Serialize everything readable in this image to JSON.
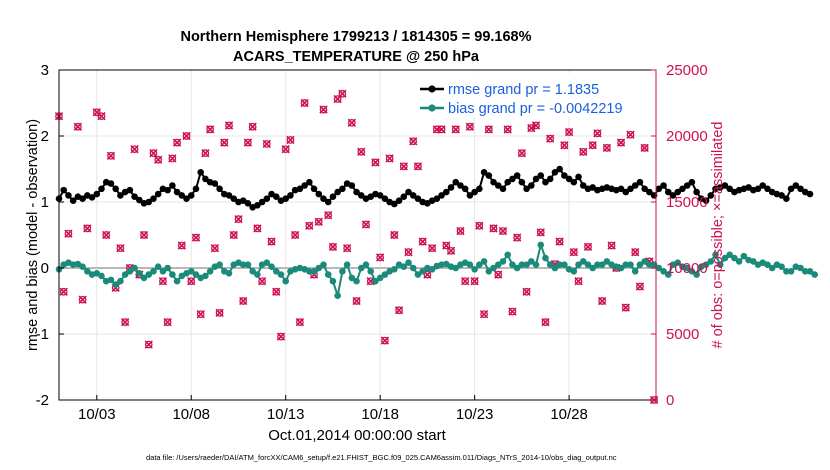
{
  "chart_data": {
    "type": "line",
    "title": "Northern Hemisphere 1799213 / 1814305 = 99.168%",
    "subtitle": "ACARS_TEMPERATURE @ 250 hPa",
    "xlabel": "Oct.01,2014 00:00:00 start",
    "ylabel": "rmse and bias (model - observation)",
    "y2label": "# of obs: o=possible; ×=assimilated",
    "footnote": "data file: /Users/raeder/DAI/ATM_forcXX/CAM6_setup/f.e21.FHIST_BGC.f09_025.CAM6assim.011/Diags_NTrS_2014-10/obs_diag_output.nc",
    "xlim": [
      1,
      32.6
    ],
    "ylim": [
      -2,
      3
    ],
    "y2lim": [
      0,
      25000
    ],
    "xticks": [
      3,
      8,
      13,
      18,
      23,
      28
    ],
    "xtick_labels": [
      "10/03",
      "10/08",
      "10/13",
      "10/18",
      "10/23",
      "10/28"
    ],
    "yticks": [
      -2,
      -1,
      0,
      1,
      2,
      3
    ],
    "ytick_labels": [
      "-2",
      "-1",
      "0",
      "1",
      "2",
      "3"
    ],
    "y2ticks": [
      0,
      5000,
      10000,
      15000,
      20000,
      25000
    ],
    "y2tick_labels": [
      "0",
      "5000",
      "10000",
      "15000",
      "20000",
      "25000"
    ],
    "zero_line": 0,
    "legend_position": "top-right",
    "series": [
      {
        "name": "rmse grand pr = 1.1835",
        "axis": "left",
        "color": "#000000",
        "marker": "circle",
        "x_start": 1.0,
        "x_step": 0.25,
        "values": [
          1.05,
          1.18,
          1.1,
          1.02,
          1.08,
          1.05,
          1.1,
          1.07,
          1.12,
          1.2,
          1.3,
          1.28,
          1.2,
          1.1,
          1.15,
          1.18,
          1.08,
          1.03,
          0.98,
          1.0,
          1.05,
          1.12,
          1.2,
          1.18,
          1.25,
          1.15,
          1.1,
          1.05,
          1.1,
          1.2,
          1.45,
          1.35,
          1.3,
          1.28,
          1.2,
          1.12,
          1.1,
          1.05,
          1.0,
          1.02,
          0.98,
          0.92,
          0.95,
          1.0,
          1.05,
          1.12,
          1.08,
          1.02,
          1.05,
          1.1,
          1.18,
          1.2,
          1.25,
          1.3,
          1.2,
          1.12,
          1.05,
          1.0,
          1.08,
          1.15,
          1.2,
          1.28,
          1.25,
          1.15,
          1.1,
          1.05,
          1.08,
          1.12,
          1.1,
          1.05,
          1.0,
          0.97,
          1.02,
          1.08,
          1.15,
          1.1,
          1.05,
          1.0,
          0.98,
          1.02,
          1.05,
          1.1,
          1.15,
          1.22,
          1.3,
          1.25,
          1.2,
          1.1,
          1.15,
          1.2,
          1.45,
          1.4,
          1.3,
          1.25,
          1.2,
          1.3,
          1.35,
          1.4,
          1.3,
          1.2,
          1.25,
          1.35,
          1.4,
          1.3,
          1.35,
          1.45,
          1.5,
          1.4,
          1.35,
          1.3,
          1.38,
          1.25,
          1.2,
          1.22,
          1.18,
          1.2,
          1.22,
          1.2,
          1.18,
          1.2,
          1.15,
          1.2,
          1.25,
          1.3,
          1.2,
          1.15,
          1.1,
          1.2,
          1.25,
          1.15,
          1.1,
          1.15,
          1.2,
          1.25,
          1.3,
          1.15,
          1.05,
          1.02,
          1.1,
          1.2,
          1.22,
          1.25,
          1.2,
          1.15,
          1.18,
          1.2,
          1.22,
          1.18,
          1.2,
          1.25,
          1.2,
          1.15,
          1.12,
          1.1,
          1.05,
          1.2,
          1.25,
          1.2,
          1.15,
          1.12
        ]
      },
      {
        "name": "bias grand pr = -0.0042219",
        "axis": "left",
        "color": "#1a8a7a",
        "marker": "circle",
        "x_start": 1.0,
        "x_step": 0.25,
        "values": [
          -0.02,
          0.05,
          0.08,
          0.05,
          0.06,
          0.02,
          -0.05,
          -0.1,
          -0.08,
          -0.12,
          -0.2,
          -0.18,
          -0.25,
          -0.2,
          -0.1,
          -0.05,
          0.0,
          -0.08,
          -0.15,
          -0.1,
          -0.05,
          0.02,
          -0.05,
          0.0,
          -0.1,
          -0.2,
          -0.12,
          -0.08,
          -0.05,
          -0.1,
          -0.15,
          -0.12,
          -0.05,
          0.02,
          0.05,
          -0.05,
          -0.08,
          0.05,
          0.08,
          0.05,
          0.05,
          -0.05,
          -0.1,
          0.05,
          0.08,
          0.02,
          -0.05,
          -0.1,
          -0.2,
          -0.05,
          -0.02,
          0.0,
          -0.02,
          -0.05,
          -0.05,
          0.0,
          0.05,
          -0.1,
          -0.2,
          -0.42,
          -0.05,
          0.05,
          -0.15,
          -0.2,
          0.0,
          0.05,
          -0.05,
          -0.2,
          -0.15,
          -0.1,
          -0.05,
          -0.02,
          0.05,
          0.02,
          0.08,
          0.0,
          -0.1,
          -0.05,
          0.0,
          -0.02,
          0.03,
          0.05,
          0.06,
          0.02,
          0.0,
          0.05,
          0.08,
          0.05,
          -0.02,
          0.05,
          0.1,
          -0.05,
          0.0,
          0.05,
          0.1,
          0.2,
          0.05,
          0.0,
          0.05,
          0.05,
          0.1,
          0.05,
          0.35,
          0.15,
          0.05,
          0.0,
          0.05,
          0.05,
          -0.02,
          -0.05,
          0.05,
          0.1,
          0.05,
          0.0,
          0.05,
          0.05,
          0.1,
          0.05,
          0.02,
          0.0,
          0.05,
          0.05,
          -0.05,
          0.05,
          0.1,
          0.05,
          0.05,
          0.0,
          -0.05,
          -0.1,
          0.05,
          0.08,
          0.02,
          0.0,
          -0.05,
          -0.1,
          0.02,
          0.05,
          0.1,
          0.2,
          0.05,
          0.15,
          0.2,
          0.15,
          0.1,
          0.18,
          0.12,
          0.1,
          0.05,
          0.08,
          0.05,
          0.0,
          0.05,
          0.02,
          -0.05,
          -0.05,
          0.02,
          0.0,
          -0.05,
          -0.05,
          -0.1
        ]
      },
      {
        "name": "possible",
        "axis": "right",
        "color": "#cc1155",
        "marker": "o",
        "points": [
          [
            1.0,
            21500
          ],
          [
            1.25,
            8200
          ],
          [
            1.5,
            12600
          ],
          [
            2.0,
            20700
          ],
          [
            2.25,
            7600
          ],
          [
            2.5,
            13000
          ],
          [
            3.0,
            21800
          ],
          [
            3.25,
            21500
          ],
          [
            3.5,
            12500
          ],
          [
            3.75,
            18500
          ],
          [
            4.0,
            8500
          ],
          [
            4.25,
            11500
          ],
          [
            4.5,
            5900
          ],
          [
            4.75,
            10000
          ],
          [
            5.0,
            19000
          ],
          [
            5.25,
            9500
          ],
          [
            5.5,
            12500
          ],
          [
            5.75,
            4200
          ],
          [
            6.0,
            18700
          ],
          [
            6.25,
            18200
          ],
          [
            6.5,
            9000
          ],
          [
            6.75,
            5900
          ],
          [
            7.0,
            18300
          ],
          [
            7.25,
            19500
          ],
          [
            7.5,
            11700
          ],
          [
            7.75,
            20000
          ],
          [
            8.0,
            9000
          ],
          [
            8.25,
            12300
          ],
          [
            8.5,
            6500
          ],
          [
            8.75,
            18700
          ],
          [
            9.0,
            20500
          ],
          [
            9.25,
            11500
          ],
          [
            9.5,
            6600
          ],
          [
            9.75,
            19500
          ],
          [
            10.0,
            20800
          ],
          [
            10.25,
            12500
          ],
          [
            10.5,
            13700
          ],
          [
            10.75,
            7500
          ],
          [
            11.0,
            19500
          ],
          [
            11.25,
            20700
          ],
          [
            11.5,
            13000
          ],
          [
            11.75,
            9000
          ],
          [
            12.0,
            19400
          ],
          [
            12.25,
            12000
          ],
          [
            12.5,
            8200
          ],
          [
            12.75,
            4800
          ],
          [
            13.0,
            19000
          ],
          [
            13.25,
            19700
          ],
          [
            13.5,
            12500
          ],
          [
            13.75,
            5900
          ],
          [
            14.0,
            22500
          ],
          [
            14.25,
            13200
          ],
          [
            14.5,
            9500
          ],
          [
            14.75,
            13500
          ],
          [
            15.0,
            22000
          ],
          [
            15.25,
            14000
          ],
          [
            15.5,
            11600
          ],
          [
            15.75,
            22800
          ],
          [
            16.0,
            23200
          ],
          [
            16.25,
            11500
          ],
          [
            16.5,
            21000
          ],
          [
            16.75,
            7500
          ],
          [
            17.0,
            18800
          ],
          [
            17.25,
            13300
          ],
          [
            17.5,
            9000
          ],
          [
            17.75,
            18000
          ],
          [
            18.0,
            10800
          ],
          [
            18.25,
            4500
          ],
          [
            18.5,
            18300
          ],
          [
            18.75,
            12500
          ],
          [
            19.0,
            6800
          ],
          [
            19.25,
            17700
          ],
          [
            19.5,
            11200
          ],
          [
            19.75,
            19600
          ],
          [
            20.0,
            17700
          ],
          [
            20.25,
            12000
          ],
          [
            20.5,
            9500
          ],
          [
            20.75,
            11500
          ],
          [
            21.0,
            20500
          ],
          [
            21.25,
            20500
          ],
          [
            21.5,
            11700
          ],
          [
            21.75,
            11300
          ],
          [
            22.0,
            20500
          ],
          [
            22.25,
            12800
          ],
          [
            22.5,
            9000
          ],
          [
            22.75,
            20700
          ],
          [
            23.0,
            9000
          ],
          [
            23.25,
            13200
          ],
          [
            23.5,
            6500
          ],
          [
            23.75,
            20500
          ],
          [
            24.0,
            13000
          ],
          [
            24.25,
            9500
          ],
          [
            24.5,
            12800
          ],
          [
            24.75,
            20500
          ],
          [
            25.0,
            6700
          ],
          [
            25.25,
            12300
          ],
          [
            25.5,
            18700
          ],
          [
            25.75,
            8200
          ],
          [
            26.0,
            20600
          ],
          [
            26.25,
            20800
          ],
          [
            26.5,
            12700
          ],
          [
            26.75,
            5900
          ],
          [
            27.0,
            19800
          ],
          [
            27.25,
            10300
          ],
          [
            27.5,
            12000
          ],
          [
            27.75,
            19300
          ],
          [
            28.0,
            20300
          ],
          [
            28.25,
            11200
          ],
          [
            28.5,
            9000
          ],
          [
            28.75,
            18800
          ],
          [
            29.0,
            11600
          ],
          [
            29.25,
            19300
          ],
          [
            29.5,
            20200
          ],
          [
            29.75,
            7500
          ],
          [
            30.0,
            19100
          ],
          [
            30.25,
            11700
          ],
          [
            30.5,
            10000
          ],
          [
            30.75,
            19500
          ],
          [
            31.0,
            7000
          ],
          [
            31.25,
            20100
          ],
          [
            31.5,
            11200
          ],
          [
            31.75,
            8600
          ],
          [
            32.0,
            19100
          ],
          [
            32.25,
            10500
          ],
          [
            32.5,
            0
          ]
        ]
      },
      {
        "name": "assimilated",
        "axis": "right",
        "color": "#cc1155",
        "marker": "x",
        "same_as": "possible"
      }
    ]
  }
}
